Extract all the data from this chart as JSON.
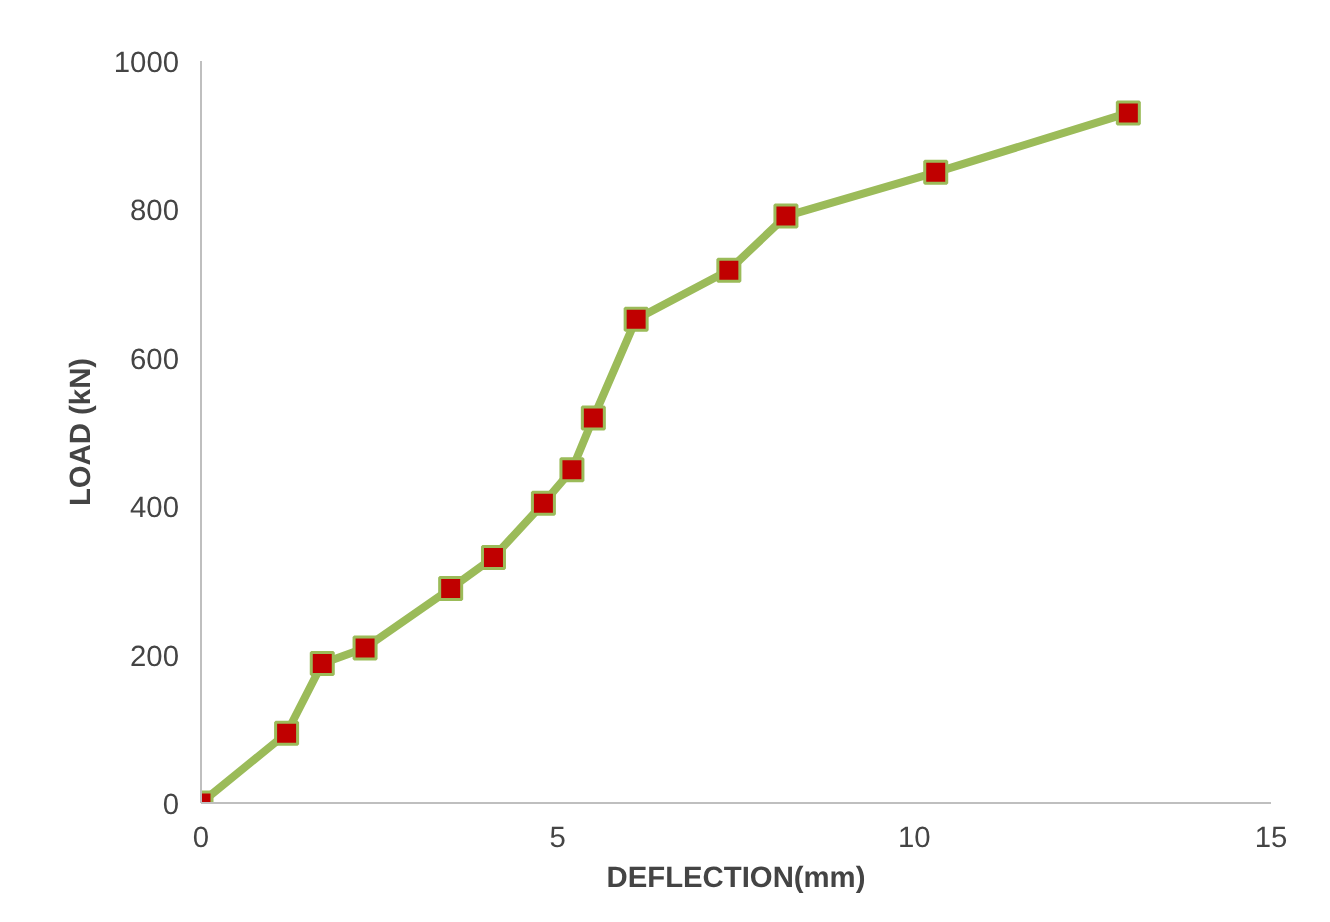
{
  "chart_data": {
    "type": "line",
    "xlabel": "DEFLECTION(mm)",
    "ylabel": "LOAD (kN)",
    "x": [
      0,
      1.2,
      1.7,
      2.3,
      3.5,
      4.1,
      4.8,
      5.2,
      5.5,
      6.1,
      7.4,
      8.2,
      10.3,
      13.0
    ],
    "series": [
      {
        "color": "#9bbb59",
        "colors": [
          "#c00000",
          "#c00000",
          "#c00000",
          "#c00000",
          "#c00000",
          "#c00000",
          "#c00000",
          "#c00000",
          "#c00000",
          "#c00000",
          "#c00000",
          "#c00000",
          "#c00000",
          "#c00000"
        ],
        "values": [
          0,
          94,
          188,
          209,
          289,
          331,
          404,
          449,
          519,
          652,
          718,
          791,
          850,
          930
        ]
      }
    ],
    "xlim": [
      0,
      15
    ],
    "ylim": [
      0,
      1000
    ],
    "xticks": [
      0,
      5,
      10,
      15
    ],
    "yticks": [
      0,
      200,
      400,
      600,
      800,
      1000
    ],
    "marker": "square",
    "line_style": "solid",
    "grid": false
  }
}
